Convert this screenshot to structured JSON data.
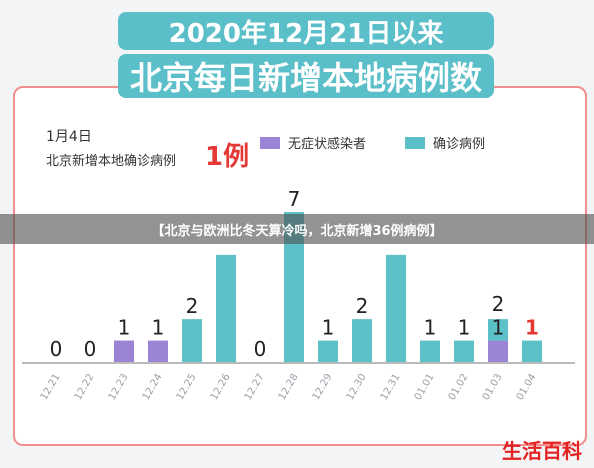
{
  "title_line1": "2020年12月21日以来",
  "title_line2": "北京每日新增本地病例数",
  "panel": {
    "date": "1月4日",
    "local_label": "北京新增本地确诊病例",
    "count": "1例"
  },
  "banner": "【北京与欧洲比冬天算冷吗，北京新增36例病例】",
  "watermark": "生活百科",
  "colors": {
    "title_bg": "#5bbfc9",
    "confirmed": "#5bc0c8",
    "asymptomatic": "#9b84d6",
    "highlight": "#e53935"
  },
  "chart_data": {
    "type": "bar",
    "categories": [
      "12.21",
      "12.22",
      "12.23",
      "12.24",
      "12.25",
      "12.26",
      "12.27",
      "12.28",
      "12.29",
      "12.30",
      "12.31",
      "01.01",
      "01.02",
      "01.03",
      "01.04"
    ],
    "series": [
      {
        "name": "无症状感染者",
        "values": [
          0,
          0,
          1,
          1,
          0,
          0,
          0,
          0,
          0,
          0,
          0,
          0,
          0,
          1,
          0
        ]
      },
      {
        "name": "确诊病例",
        "values": [
          0,
          0,
          0,
          0,
          2,
          5,
          0,
          7,
          1,
          2,
          5,
          1,
          1,
          1,
          1
        ]
      }
    ],
    "data_labels": [
      "0",
      "0",
      "1",
      "1",
      "2",
      "",
      "0",
      "7",
      "1",
      "2",
      "",
      "1",
      "1",
      "1",
      "1"
    ],
    "top_labels": [
      "",
      "",
      "",
      "",
      "",
      "",
      "",
      "",
      "",
      "",
      "",
      "",
      "",
      "2",
      ""
    ],
    "ylim": [
      0,
      7
    ]
  }
}
